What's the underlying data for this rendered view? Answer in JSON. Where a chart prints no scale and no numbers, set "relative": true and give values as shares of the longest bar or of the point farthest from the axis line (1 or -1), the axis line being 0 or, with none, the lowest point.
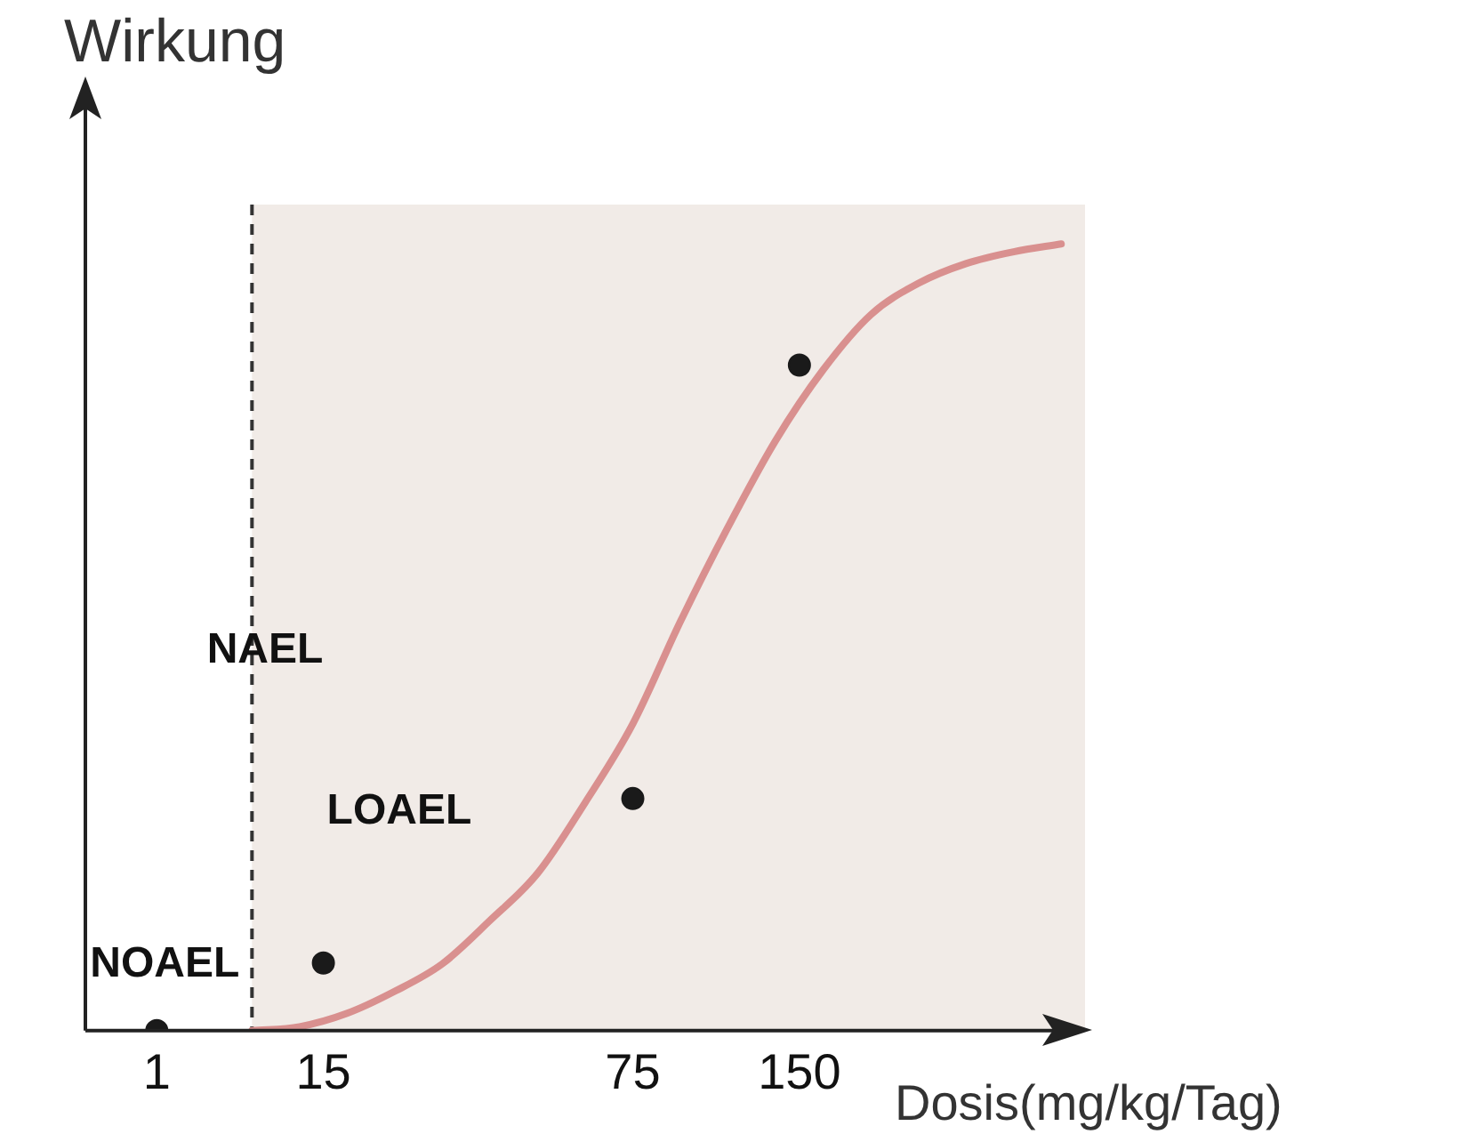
{
  "chart_data": {
    "type": "line",
    "xlabel": "Dosis(mg/kg/Tag)",
    "ylabel": "Wirkung",
    "relative": true,
    "grid": false,
    "legend": false,
    "categories": [
      null,
      null,
      null,
      "1",
      null,
      null,
      null,
      null,
      null,
      null,
      "15",
      null,
      null,
      null,
      null,
      null,
      null,
      null,
      null,
      null,
      null,
      null,
      null,
      "75",
      null,
      null,
      null,
      null,
      null,
      null,
      "150",
      null,
      null,
      null,
      null,
      null,
      null,
      null,
      null,
      null,
      null,
      null,
      null
    ],
    "series": [
      {
        "type": "line",
        "color": "#d9908f",
        "marker": "none",
        "values": [
          null,
          null,
          null,
          null,
          null,
          null,
          null,
          0,
          null,
          0.005,
          null,
          0.022,
          null,
          0.05,
          null,
          0.085,
          null,
          0.14,
          null,
          0.2,
          null,
          0.29,
          null,
          0.39,
          null,
          0.52,
          null,
          0.64,
          null,
          0.75,
          null,
          0.84,
          null,
          0.91,
          null,
          0.95,
          null,
          0.975,
          null,
          0.99,
          null,
          1,
          null
        ]
      },
      {
        "type": "scatter",
        "color": "#1a1a1a",
        "marker": "circle",
        "values": [
          null,
          null,
          null,
          0,
          null,
          null,
          null,
          null,
          null,
          null,
          0.086,
          null,
          null,
          null,
          null,
          null,
          null,
          null,
          null,
          null,
          null,
          null,
          null,
          0.295,
          null,
          null,
          null,
          null,
          null,
          null,
          0.846,
          null,
          null,
          null,
          null,
          null,
          null,
          null,
          null,
          null,
          null,
          null,
          null
        ]
      }
    ],
    "annotations": [
      "NAEL",
      "NOAEL",
      "LOAEL"
    ]
  }
}
